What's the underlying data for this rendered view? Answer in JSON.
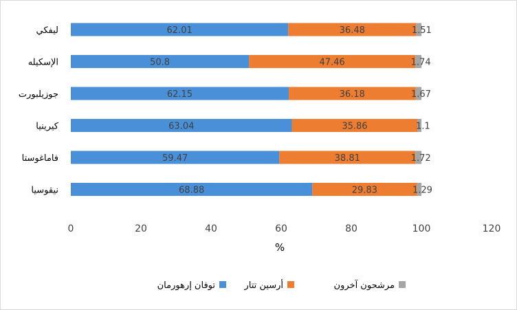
{
  "chart_data": {
    "type": "bar",
    "orientation": "horizontal",
    "stacked": true,
    "categories": [
      "ليفكي",
      "الإسكيله",
      "جوزيلبورت",
      "كيرينيا",
      "فاماغوستا",
      "نيقوسيا"
    ],
    "series": [
      {
        "name": "توفان إرهورمان",
        "color": "#4a90d9",
        "values": [
          62.01,
          50.8,
          62.15,
          63.04,
          59.47,
          68.88
        ]
      },
      {
        "name": "أرسين تتار",
        "color": "#ed7d31",
        "values": [
          36.48,
          47.46,
          36.18,
          35.86,
          38.81,
          29.83
        ]
      },
      {
        "name": "مرشحون آخرون",
        "color": "#a5a5a5",
        "values": [
          1.51,
          1.74,
          1.67,
          1.1,
          1.72,
          1.29
        ]
      }
    ],
    "data_labels": [
      [
        "62.01",
        "50.8",
        "62.15",
        "63.04",
        "59.47",
        "68.88"
      ],
      [
        "36.48",
        "47.46",
        "36.18",
        "35.86",
        "38.81",
        "29.83"
      ],
      [
        "1.51",
        "1.74",
        "1.67",
        "1.1",
        "1.72",
        "1.29"
      ]
    ],
    "x_ticks": [
      "0",
      "20",
      "40",
      "60",
      "80",
      "100",
      "120"
    ],
    "xlim": [
      0,
      120
    ],
    "xlabel": "%",
    "ylabel": "",
    "title": "",
    "grid": false,
    "legend_position": "bottom"
  }
}
